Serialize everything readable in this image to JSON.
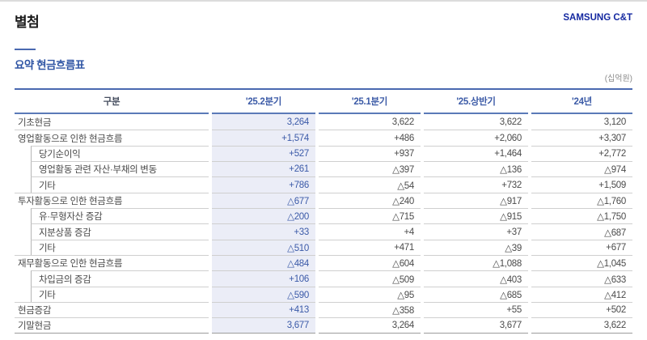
{
  "page": {
    "appendix_label": "별첨",
    "brand": "SAMSUNG C&T",
    "section_title": "요약 현금흐름표",
    "unit_note": "(십억원)"
  },
  "table": {
    "columns": [
      "구분",
      "'25.2분기",
      "'25.1분기",
      "'25.상반기",
      "'24년"
    ],
    "rows": [
      {
        "label": "기초현금",
        "indent": 0,
        "values": [
          "3,264",
          "3,622",
          "3,622",
          "3,120"
        ]
      },
      {
        "label": "영업활동으로 인한 현금흐름",
        "indent": 0,
        "values": [
          "+1,574",
          "+486",
          "+2,060",
          "+3,307"
        ]
      },
      {
        "label": "당기순이익",
        "indent": 1,
        "values": [
          "+527",
          "+937",
          "+1,464",
          "+2,772"
        ]
      },
      {
        "label": "영업활동 관련 자산·부채의 변동",
        "indent": 1,
        "values": [
          "+261",
          "△397",
          "△136",
          "△974"
        ]
      },
      {
        "label": "기타",
        "indent": 1,
        "values": [
          "+786",
          "△54",
          "+732",
          "+1,509"
        ]
      },
      {
        "label": "투자활동으로 인한 현금흐름",
        "indent": 0,
        "values": [
          "△677",
          "△240",
          "△917",
          "△1,760"
        ]
      },
      {
        "label": "유·무형자산 증감",
        "indent": 1,
        "values": [
          "△200",
          "△715",
          "△915",
          "△1,750"
        ]
      },
      {
        "label": "지분상품 증감",
        "indent": 1,
        "values": [
          "+33",
          "+4",
          "+37",
          "△687"
        ]
      },
      {
        "label": "기타",
        "indent": 1,
        "values": [
          "△510",
          "+471",
          "△39",
          "+677"
        ]
      },
      {
        "label": "재무활동으로 인한 현금흐름",
        "indent": 0,
        "values": [
          "△484",
          "△604",
          "△1,088",
          "△1,045"
        ]
      },
      {
        "label": "차입금의 증감",
        "indent": 1,
        "values": [
          "+106",
          "△509",
          "△403",
          "△633"
        ]
      },
      {
        "label": "기타",
        "indent": 1,
        "values": [
          "△590",
          "△95",
          "△685",
          "△412"
        ]
      },
      {
        "label": "현금증감",
        "indent": 0,
        "values": [
          "+413",
          "△358",
          "+55",
          "+502"
        ]
      },
      {
        "label": "기말현금",
        "indent": 0,
        "values": [
          "3,677",
          "3,264",
          "3,677",
          "3,622"
        ]
      }
    ]
  },
  "colors": {
    "brand_blue": "#1428a0",
    "accent_blue": "#2f55a4",
    "rule_blue": "#4a69b0",
    "highlight_bg": "#ebedf7",
    "highlight_text": "#3b5aa8",
    "body_text": "#4b4b4b",
    "rule_gray": "#cfcfcf"
  }
}
